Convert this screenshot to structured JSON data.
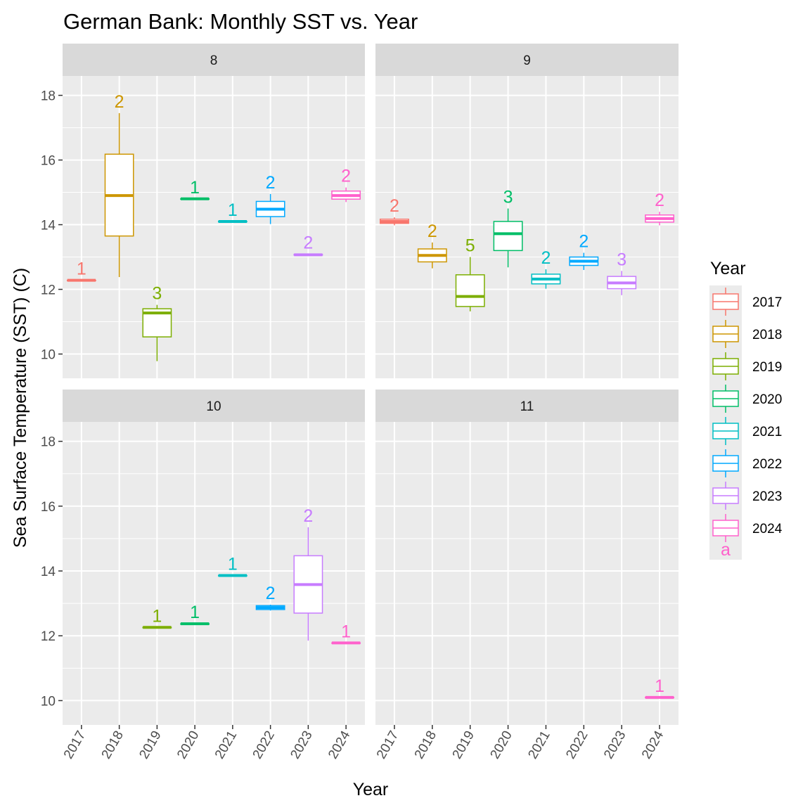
{
  "chart_data": {
    "type": "boxplot",
    "title": "German Bank: Monthly SST vs. Year",
    "xlabel": "Year",
    "ylabel": "Sea Surface Temperature (SST) (C)",
    "ylim": [
      9.25,
      18.6
    ],
    "yticks": [
      10,
      12,
      14,
      16,
      18
    ],
    "categories": [
      "2017",
      "2018",
      "2019",
      "2020",
      "2021",
      "2022",
      "2023",
      "2024"
    ],
    "legend": {
      "title": "Year",
      "placement": "right",
      "entries": [
        "2017",
        "2018",
        "2019",
        "2020",
        "2021",
        "2022",
        "2023",
        "2024"
      ],
      "key_text": "a"
    },
    "colors": {
      "2017": "#F8766D",
      "2018": "#CD9600",
      "2019": "#7CAE00",
      "2020": "#00BE67",
      "2021": "#00BFC4",
      "2022": "#00A9FF",
      "2023": "#C77CFF",
      "2024": "#FF61CC"
    },
    "facets": [
      {
        "label": "8",
        "boxes": [
          {
            "year": "2017",
            "n": "1",
            "min": 12.28,
            "q1": 12.28,
            "median": 12.28,
            "q3": 12.28,
            "max": 12.28
          },
          {
            "year": "2018",
            "n": "2",
            "min": 12.38,
            "q1": 13.65,
            "median": 14.9,
            "q3": 16.18,
            "max": 17.45
          },
          {
            "year": "2019",
            "n": "3",
            "min": 9.78,
            "q1": 10.53,
            "median": 11.27,
            "q3": 11.4,
            "max": 11.52
          },
          {
            "year": "2020",
            "n": "1",
            "min": 14.8,
            "q1": 14.8,
            "median": 14.8,
            "q3": 14.8,
            "max": 14.8
          },
          {
            "year": "2021",
            "n": "1",
            "min": 14.1,
            "q1": 14.1,
            "median": 14.1,
            "q3": 14.1,
            "max": 14.1
          },
          {
            "year": "2022",
            "n": "2",
            "min": 14.02,
            "q1": 14.25,
            "median": 14.48,
            "q3": 14.72,
            "max": 14.95
          },
          {
            "year": "2023",
            "n": "2",
            "min": 13.05,
            "q1": 13.06,
            "median": 13.07,
            "q3": 13.08,
            "max": 13.09
          },
          {
            "year": "2024",
            "n": "2",
            "min": 14.7,
            "q1": 14.79,
            "median": 14.9,
            "q3": 15.04,
            "max": 15.15
          }
        ]
      },
      {
        "label": "9",
        "boxes": [
          {
            "year": "2017",
            "n": "2",
            "min": 13.98,
            "q1": 14.04,
            "median": 14.1,
            "q3": 14.17,
            "max": 14.23
          },
          {
            "year": "2018",
            "n": "2",
            "min": 12.65,
            "q1": 12.85,
            "median": 13.05,
            "q3": 13.25,
            "max": 13.45
          },
          {
            "year": "2019",
            "n": "5",
            "min": 11.32,
            "q1": 11.47,
            "median": 11.78,
            "q3": 12.45,
            "max": 13.0
          },
          {
            "year": "2020",
            "n": "3",
            "min": 12.68,
            "q1": 13.2,
            "median": 13.72,
            "q3": 14.1,
            "max": 14.5
          },
          {
            "year": "2021",
            "n": "2",
            "min": 12.02,
            "q1": 12.17,
            "median": 12.32,
            "q3": 12.47,
            "max": 12.62
          },
          {
            "year": "2022",
            "n": "2",
            "min": 12.6,
            "q1": 12.74,
            "median": 12.87,
            "q3": 13.0,
            "max": 13.13
          },
          {
            "year": "2023",
            "n": "3",
            "min": 11.82,
            "q1": 12.02,
            "median": 12.2,
            "q3": 12.4,
            "max": 12.57
          },
          {
            "year": "2024",
            "n": "2",
            "min": 13.98,
            "q1": 14.08,
            "median": 14.19,
            "q3": 14.3,
            "max": 14.4
          }
        ]
      },
      {
        "label": "10",
        "boxes": [
          {
            "year": "2019",
            "n": "1",
            "min": 12.26,
            "q1": 12.26,
            "median": 12.26,
            "q3": 12.26,
            "max": 12.26
          },
          {
            "year": "2020",
            "n": "1",
            "min": 12.37,
            "q1": 12.37,
            "median": 12.37,
            "q3": 12.37,
            "max": 12.37
          },
          {
            "year": "2021",
            "n": "1",
            "min": 13.86,
            "q1": 13.86,
            "median": 13.86,
            "q3": 13.86,
            "max": 13.86
          },
          {
            "year": "2022",
            "n": "2",
            "min": 12.78,
            "q1": 12.81,
            "median": 12.87,
            "q3": 12.93,
            "max": 12.96
          },
          {
            "year": "2023",
            "n": "2",
            "min": 11.85,
            "q1": 12.7,
            "median": 13.58,
            "q3": 14.47,
            "max": 15.35
          },
          {
            "year": "2024",
            "n": "1",
            "min": 11.78,
            "q1": 11.78,
            "median": 11.78,
            "q3": 11.78,
            "max": 11.78
          }
        ]
      },
      {
        "label": "11",
        "boxes": [
          {
            "year": "2024",
            "n": "1",
            "min": 10.1,
            "q1": 10.1,
            "median": 10.1,
            "q3": 10.1,
            "max": 10.1
          }
        ]
      }
    ]
  }
}
